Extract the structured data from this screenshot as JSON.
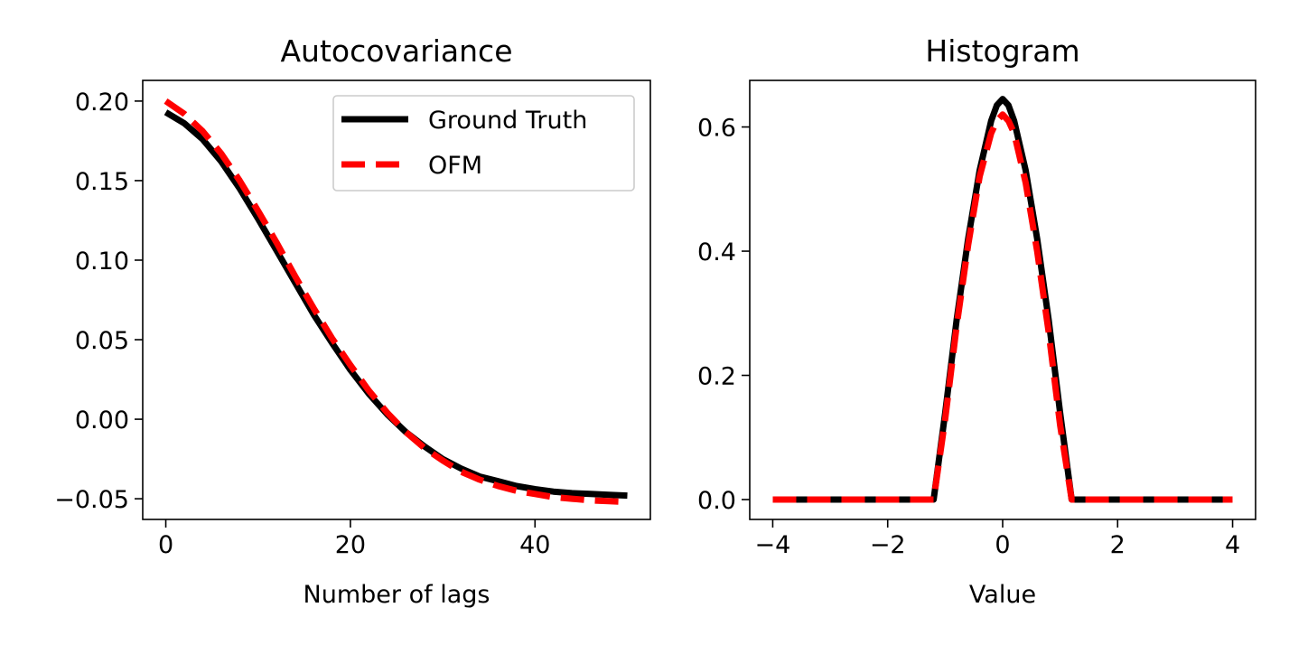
{
  "chart_data": [
    {
      "type": "line",
      "title": "Autocovariance",
      "xlabel": "Number of lags",
      "ylabel": "",
      "xlim": [
        -2.5,
        52.5
      ],
      "ylim": [
        -0.063,
        0.213
      ],
      "xticks": [
        0,
        20,
        40
      ],
      "xtick_labels": [
        "0",
        "20",
        "40"
      ],
      "yticks": [
        -0.05,
        0.0,
        0.05,
        0.1,
        0.15,
        0.2
      ],
      "ytick_labels": [
        "−0.05",
        "0.00",
        "0.05",
        "0.10",
        "0.15",
        "0.20"
      ],
      "legend": {
        "placement": "top-right",
        "entries": [
          "Ground Truth",
          "OFM"
        ]
      },
      "grid": false,
      "series": [
        {
          "name": "Ground Truth",
          "color": "#000000",
          "style": "solid",
          "x": [
            0,
            2,
            4,
            6,
            8,
            10,
            12,
            14,
            16,
            18,
            20,
            22,
            24,
            26,
            28,
            30,
            32,
            34,
            36,
            38,
            40,
            42,
            44,
            46,
            48,
            50
          ],
          "y": [
            0.193,
            0.186,
            0.176,
            0.162,
            0.145,
            0.126,
            0.106,
            0.086,
            0.066,
            0.048,
            0.031,
            0.016,
            0.003,
            -0.008,
            -0.017,
            -0.025,
            -0.031,
            -0.036,
            -0.039,
            -0.042,
            -0.044,
            -0.0455,
            -0.0465,
            -0.047,
            -0.0475,
            -0.048
          ]
        },
        {
          "name": "OFM",
          "color": "#ff0000",
          "style": "dashed",
          "x": [
            0,
            2,
            4,
            6,
            8,
            10,
            12,
            14,
            16,
            18,
            20,
            22,
            24,
            26,
            28,
            30,
            32,
            34,
            36,
            38,
            40,
            42,
            44,
            46,
            48,
            50
          ],
          "y": [
            0.2,
            0.192,
            0.181,
            0.167,
            0.15,
            0.131,
            0.111,
            0.09,
            0.07,
            0.051,
            0.034,
            0.018,
            0.004,
            -0.008,
            -0.018,
            -0.026,
            -0.033,
            -0.038,
            -0.042,
            -0.045,
            -0.047,
            -0.049,
            -0.05,
            -0.051,
            -0.0515,
            -0.052
          ]
        }
      ]
    },
    {
      "type": "line",
      "title": "Histogram",
      "xlabel": "Value",
      "ylabel": "",
      "xlim": [
        -4.4,
        4.4
      ],
      "ylim": [
        -0.032,
        0.675
      ],
      "xticks": [
        -4,
        -2,
        0,
        2,
        4
      ],
      "xtick_labels": [
        "−4",
        "−2",
        "0",
        "2",
        "4"
      ],
      "yticks": [
        0.0,
        0.2,
        0.4,
        0.6
      ],
      "ytick_labels": [
        "0.0",
        "0.2",
        "0.4",
        "0.6"
      ],
      "grid": false,
      "series": [
        {
          "name": "Ground Truth",
          "color": "#000000",
          "style": "solid",
          "x": [
            -4.0,
            -2.0,
            -1.2,
            -1.0,
            -0.8,
            -0.6,
            -0.4,
            -0.2,
            -0.1,
            0.0,
            0.1,
            0.2,
            0.4,
            0.6,
            0.8,
            1.0,
            1.2,
            2.0,
            4.0
          ],
          "y": [
            0.0,
            0.0,
            0.0,
            0.14,
            0.29,
            0.42,
            0.53,
            0.61,
            0.635,
            0.645,
            0.635,
            0.61,
            0.53,
            0.42,
            0.29,
            0.14,
            0.0,
            0.0,
            0.0
          ]
        },
        {
          "name": "OFM",
          "color": "#ff0000",
          "style": "dashed",
          "x": [
            -4.0,
            -2.0,
            -1.2,
            -1.0,
            -0.8,
            -0.6,
            -0.4,
            -0.2,
            -0.1,
            0.0,
            0.1,
            0.2,
            0.4,
            0.6,
            0.8,
            1.0,
            1.2,
            2.0,
            4.0
          ],
          "y": [
            0.0,
            0.0,
            0.0,
            0.13,
            0.28,
            0.41,
            0.52,
            0.59,
            0.61,
            0.62,
            0.61,
            0.59,
            0.51,
            0.4,
            0.27,
            0.12,
            0.0,
            0.0,
            0.0
          ]
        }
      ]
    }
  ]
}
